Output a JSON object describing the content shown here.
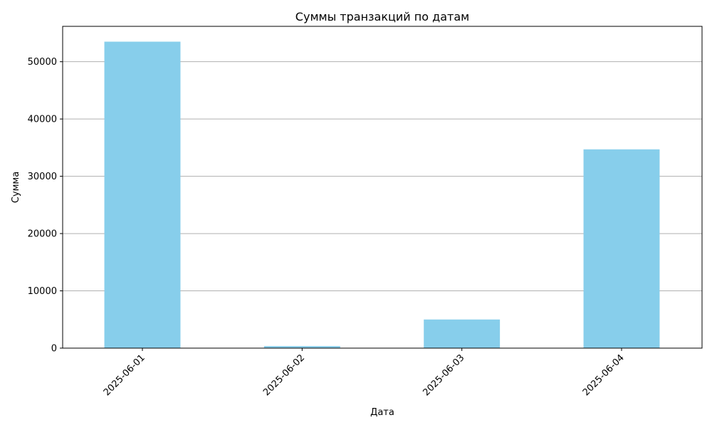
{
  "chart_data": {
    "type": "bar",
    "title": "Суммы транзакций по датам",
    "xlabel": "Дата",
    "ylabel": "Сумма",
    "categories": [
      "2025-06-01",
      "2025-06-02",
      "2025-06-03",
      "2025-06-04"
    ],
    "values": [
      53500,
      350,
      5000,
      34700
    ],
    "ylim": [
      0,
      56175
    ],
    "yticks": [
      0,
      10000,
      20000,
      30000,
      40000,
      50000
    ],
    "grid": "y-axis only",
    "bar_color": "#87ceeb"
  }
}
